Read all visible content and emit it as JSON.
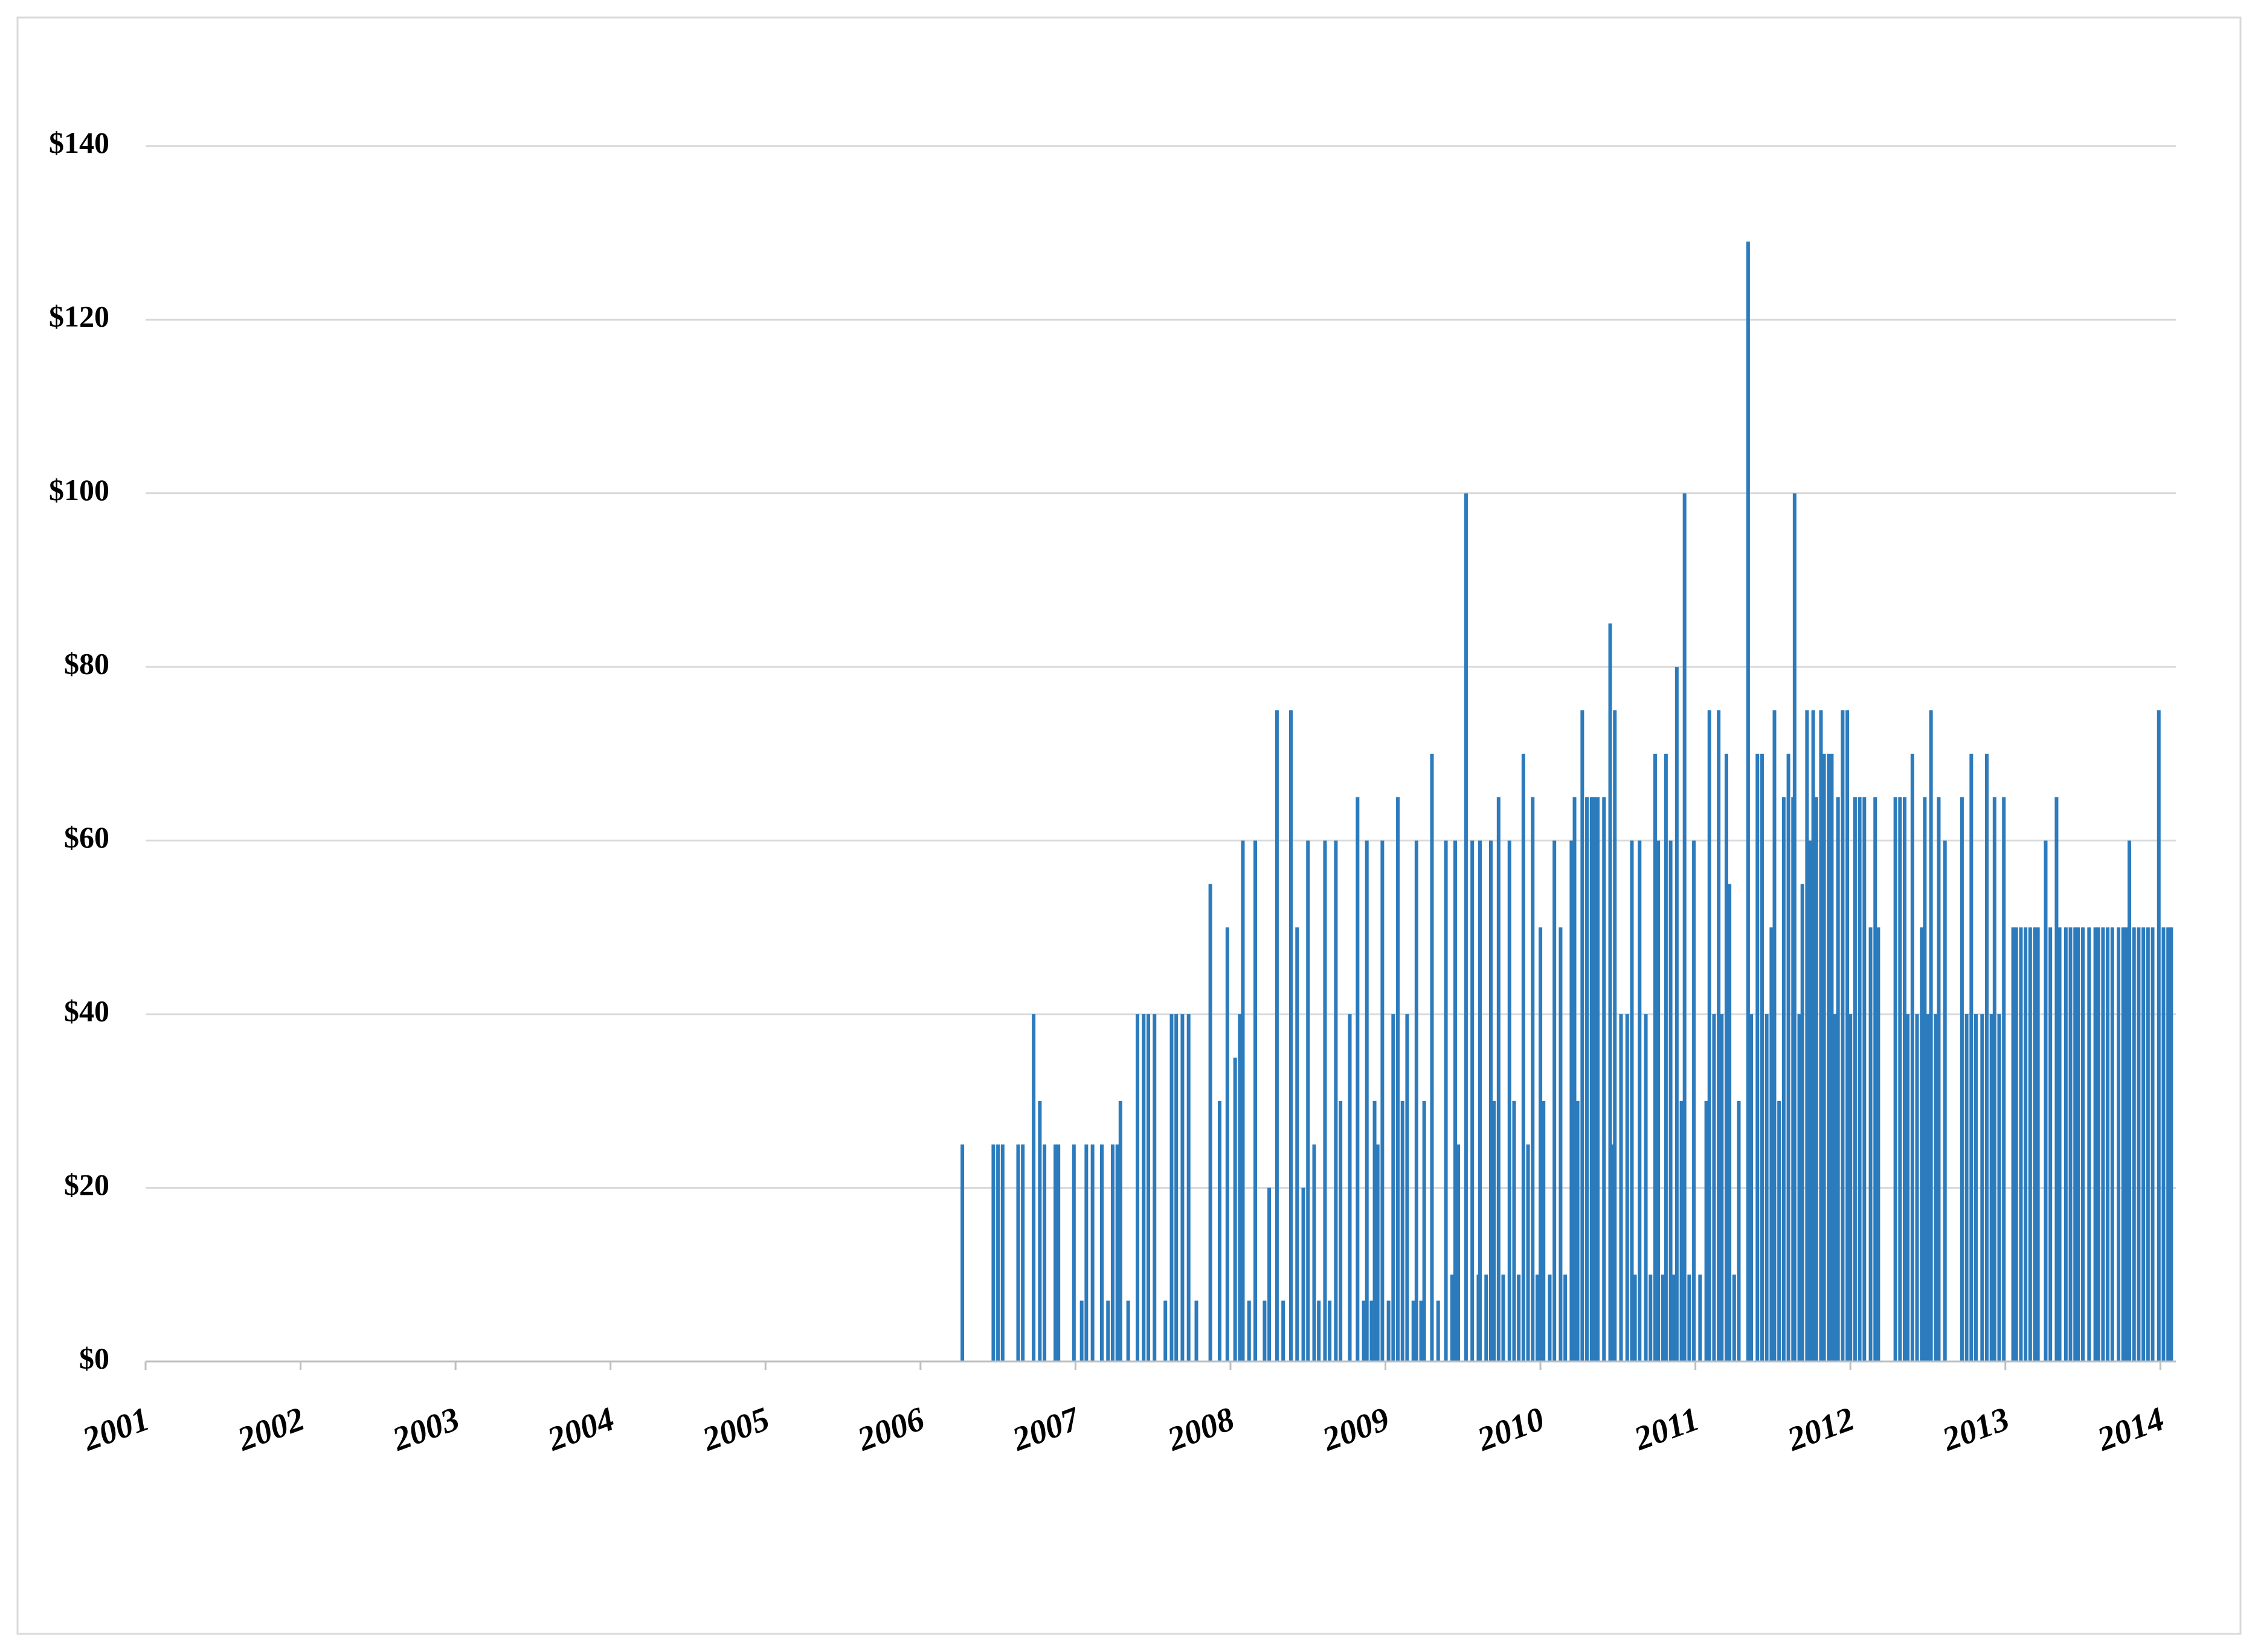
{
  "chart_data": {
    "type": "bar",
    "color": "#2b7bbd",
    "grid": true,
    "xlim": [
      2001,
      2014.1
    ],
    "xticks": [
      2001,
      2002,
      2003,
      2004,
      2005,
      2006,
      2007,
      2008,
      2009,
      2010,
      2011,
      2012,
      2013,
      2014
    ],
    "ylim": [
      0,
      150
    ],
    "yticks": [
      {
        "value": 0,
        "label": "$0"
      },
      {
        "value": 20,
        "label": "$20"
      },
      {
        "value": 40,
        "label": "$40"
      },
      {
        "value": 60,
        "label": "$60"
      },
      {
        "value": 80,
        "label": "$80"
      },
      {
        "value": 100,
        "label": "$100"
      },
      {
        "value": 120,
        "label": "$120"
      },
      {
        "value": 140,
        "label": "$140"
      }
    ],
    "x": [
      2006.27,
      2006.47,
      2006.5,
      2006.53,
      2006.63,
      2006.66,
      2006.73,
      2006.77,
      2006.8,
      2006.87,
      2006.89,
      2006.99,
      2007.04,
      2007.07,
      2007.11,
      2007.17,
      2007.21,
      2007.24,
      2007.27,
      2007.29,
      2007.34,
      2007.4,
      2007.44,
      2007.47,
      2007.51,
      2007.58,
      2007.62,
      2007.65,
      2007.69,
      2007.73,
      2007.78,
      2007.87,
      2007.93,
      2007.98,
      2008.03,
      2008.06,
      2008.08,
      2008.12,
      2008.16,
      2008.22,
      2008.25,
      2008.3,
      2008.34,
      2008.39,
      2008.43,
      2008.47,
      2008.5,
      2008.54,
      2008.57,
      2008.61,
      2008.64,
      2008.68,
      2008.71,
      2008.77,
      2008.82,
      2008.86,
      2008.88,
      2008.91,
      2008.93,
      2008.95,
      2008.98,
      2009.02,
      2009.05,
      2009.08,
      2009.11,
      2009.14,
      2009.18,
      2009.2,
      2009.23,
      2009.25,
      2009.3,
      2009.34,
      2009.39,
      2009.43,
      2009.45,
      2009.47,
      2009.52,
      2009.56,
      2009.6,
      2009.61,
      2009.65,
      2009.68,
      2009.7,
      2009.73,
      2009.76,
      2009.8,
      2009.83,
      2009.86,
      2009.89,
      2009.92,
      2009.95,
      2009.98,
      2010.0,
      2010.02,
      2010.06,
      2010.09,
      2010.13,
      2010.16,
      2010.2,
      2010.22,
      2010.24,
      2010.27,
      2010.3,
      2010.33,
      2010.35,
      2010.37,
      2010.41,
      2010.45,
      2010.47,
      2010.48,
      2010.52,
      2010.56,
      2010.59,
      2010.61,
      2010.64,
      2010.68,
      2010.71,
      2010.74,
      2010.76,
      2010.79,
      2010.81,
      2010.84,
      2010.86,
      2010.88,
      2010.91,
      2010.93,
      2010.96,
      2010.99,
      2011.03,
      2011.07,
      2011.09,
      2011.12,
      2011.15,
      2011.17,
      2011.2,
      2011.22,
      2011.25,
      2011.28,
      2011.34,
      2011.36,
      2011.4,
      2011.43,
      2011.46,
      2011.49,
      2011.51,
      2011.54,
      2011.57,
      2011.6,
      2011.63,
      2011.64,
      2011.67,
      2011.69,
      2011.72,
      2011.74,
      2011.76,
      2011.78,
      2011.81,
      2011.83,
      2011.86,
      2011.88,
      2011.9,
      2011.92,
      2011.95,
      2011.98,
      2012.0,
      2012.03,
      2012.06,
      2012.09,
      2012.13,
      2012.16,
      2012.18,
      2012.29,
      2012.32,
      2012.35,
      2012.37,
      2012.4,
      2012.43,
      2012.46,
      2012.48,
      2012.5,
      2012.52,
      2012.55,
      2012.57,
      2012.61,
      2012.72,
      2012.75,
      2012.78,
      2012.81,
      2012.85,
      2012.88,
      2012.91,
      2012.93,
      2012.96,
      2012.99,
      2013.05,
      2013.07,
      2013.1,
      2013.13,
      2013.16,
      2013.19,
      2013.21,
      2013.26,
      2013.29,
      2013.33,
      2013.35,
      2013.39,
      2013.42,
      2013.45,
      2013.47,
      2013.5,
      2013.54,
      2013.58,
      2013.6,
      2013.63,
      2013.66,
      2013.69,
      2013.73,
      2013.76,
      2013.78,
      2013.8,
      2013.83,
      2013.86,
      2013.89,
      2013.92,
      2013.95,
      2013.99,
      2014.02,
      2014.05,
      2014.07
    ],
    "values": [
      25,
      25,
      25,
      25,
      25,
      25,
      40,
      30,
      25,
      25,
      25,
      25,
      7,
      25,
      25,
      25,
      7,
      25,
      25,
      30,
      7,
      40,
      40,
      40,
      40,
      7,
      40,
      40,
      40,
      40,
      7,
      55,
      30,
      50,
      35,
      40,
      60,
      7,
      60,
      7,
      20,
      75,
      7,
      75,
      50,
      20,
      60,
      25,
      7,
      60,
      7,
      60,
      30,
      40,
      65,
      7,
      60,
      7,
      30,
      25,
      60,
      7,
      40,
      65,
      30,
      40,
      7,
      60,
      7,
      30,
      70,
      7,
      60,
      10,
      60,
      25,
      100,
      60,
      10,
      60,
      10,
      60,
      30,
      65,
      10,
      60,
      30,
      10,
      70,
      25,
      65,
      10,
      50,
      30,
      10,
      60,
      50,
      10,
      60,
      65,
      30,
      75,
      65,
      65,
      65,
      65,
      65,
      85,
      25,
      75,
      40,
      40,
      60,
      10,
      60,
      40,
      10,
      70,
      60,
      10,
      70,
      60,
      10,
      80,
      30,
      100,
      10,
      60,
      10,
      30,
      75,
      40,
      75,
      40,
      70,
      55,
      10,
      30,
      129,
      40,
      70,
      70,
      40,
      50,
      75,
      30,
      65,
      70,
      65,
      100,
      40,
      55,
      75,
      60,
      75,
      65,
      75,
      70,
      70,
      70,
      40,
      65,
      75,
      75,
      40,
      65,
      65,
      65,
      50,
      65,
      50,
      65,
      65,
      65,
      40,
      70,
      40,
      50,
      65,
      40,
      75,
      40,
      65,
      60,
      65,
      40,
      70,
      40,
      40,
      70,
      40,
      65,
      40,
      65,
      50,
      50,
      50,
      50,
      50,
      50,
      50,
      60,
      50,
      65,
      50,
      50,
      50,
      50,
      50,
      50,
      50,
      50,
      50,
      50,
      50,
      50,
      50,
      50,
      50,
      60,
      50,
      50,
      50,
      50,
      50,
      75,
      50,
      50,
      50
    ]
  }
}
